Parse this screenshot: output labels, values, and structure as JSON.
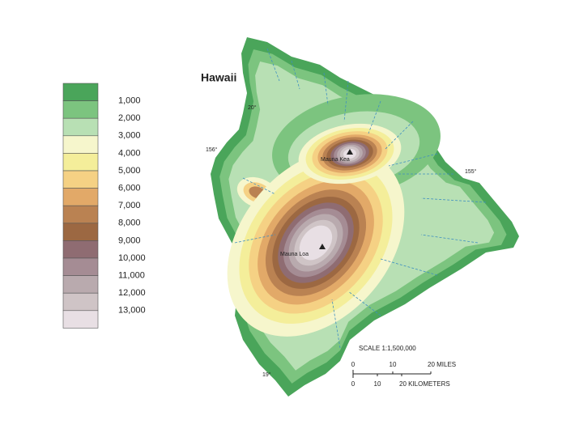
{
  "title": "Hawaii",
  "legend": {
    "colors": [
      "#4aa55a",
      "#7cc47f",
      "#b8e0b4",
      "#f6f6cc",
      "#f4ee9a",
      "#f5d184",
      "#e2a968",
      "#ba8252",
      "#9c6842",
      "#8f6c72",
      "#a58c94",
      "#b9aaae",
      "#cfc4c6",
      "#e8dfe4"
    ],
    "labels": [
      "1,000",
      "2,000",
      "3,000",
      "4,000",
      "5,000",
      "6,000",
      "7,000",
      "8,000",
      "9,000",
      "10,000",
      "11,000",
      "12,000",
      "13,000"
    ]
  },
  "graticule": [
    "20°",
    "156°",
    "155°",
    "19°"
  ],
  "peaks": [
    "Mauna Kea",
    "Mauna Loa"
  ],
  "scale": {
    "title": "SCALE 1:1,500,000",
    "miles": [
      "0",
      "10",
      "20 MILES"
    ],
    "kilometers": [
      "0",
      "10",
      "20 KILOMETERS"
    ]
  }
}
